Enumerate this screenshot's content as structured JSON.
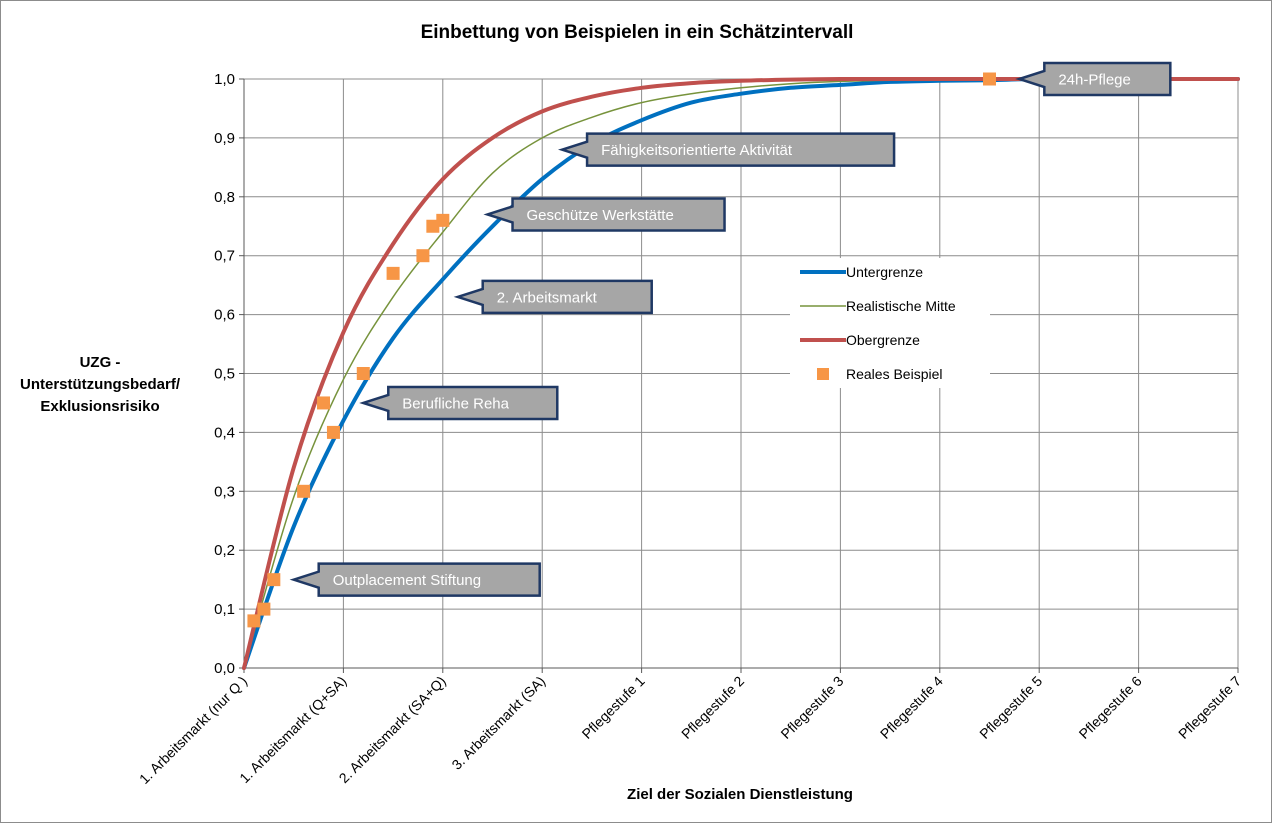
{
  "chart_data": {
    "type": "line",
    "title": "Einbettung  von Beispielen in ein Schätzintervall",
    "xlabel": "Ziel der Sozialen Dienstleistung",
    "ylabel": [
      "UZG -",
      "Unterstützungsbedarf/",
      "Exklusionsrisiko"
    ],
    "categories": [
      "1. Arbeitsmarkt (nur Q )",
      "1. Arbeitsmarkt (Q+SA)",
      "2. Arbeitsmarkt (SA+Q)",
      "3. Arbeitsmarkt (SA)",
      "Pflegestufe 1",
      "Pflegestufe 2",
      "Pflegestufe 3",
      "Pflegestufe 4",
      "Pflegestufe 5",
      "Pflegestufe 6",
      "Pflegestufe 7"
    ],
    "xlim": [
      0,
      10
    ],
    "ylim": [
      0,
      1
    ],
    "yticks": [
      "0,0",
      "0,1",
      "0,2",
      "0,3",
      "0,4",
      "0,5",
      "0,6",
      "0,7",
      "0,8",
      "0,9",
      "1,0"
    ],
    "grid": true,
    "series": [
      {
        "name": "Untergrenze",
        "color": "#0070c0",
        "x": [
          0,
          0.5,
          1,
          1.5,
          2,
          2.5,
          3,
          3.5,
          4,
          4.5,
          5,
          5.5,
          6,
          6.5,
          7,
          7.5,
          8,
          9,
          10
        ],
        "y": [
          0,
          0.24,
          0.42,
          0.56,
          0.66,
          0.75,
          0.83,
          0.89,
          0.93,
          0.96,
          0.975,
          0.985,
          0.99,
          0.995,
          0.997,
          0.998,
          1.0,
          1.0,
          1.0
        ]
      },
      {
        "name": "Realistische Mitte",
        "color": "#77933c",
        "x": [
          0,
          0.5,
          1,
          1.5,
          2,
          2.5,
          3,
          3.5,
          4,
          4.5,
          5,
          5.5,
          6,
          6.5,
          7,
          7.5,
          8,
          9,
          10
        ],
        "y": [
          0,
          0.29,
          0.49,
          0.63,
          0.74,
          0.84,
          0.9,
          0.935,
          0.96,
          0.975,
          0.985,
          0.992,
          0.996,
          0.998,
          0.999,
          1.0,
          1.0,
          1.0,
          1.0
        ]
      },
      {
        "name": "Obergrenze",
        "color": "#c0504d",
        "x": [
          0,
          0.5,
          1,
          1.5,
          2,
          2.5,
          3,
          3.5,
          4,
          4.5,
          5,
          5.5,
          6,
          6.5,
          7,
          7.5,
          8,
          9,
          10
        ],
        "y": [
          0,
          0.34,
          0.57,
          0.72,
          0.83,
          0.9,
          0.945,
          0.97,
          0.985,
          0.993,
          0.997,
          0.999,
          1.0,
          1.0,
          1.0,
          1.0,
          1.0,
          1.0,
          1.0
        ]
      }
    ],
    "points": {
      "name": "Reales Beispiel",
      "color": "#f79646",
      "x": [
        0.1,
        0.2,
        0.3,
        0.6,
        0.8,
        0.9,
        1.2,
        1.5,
        1.8,
        1.9,
        2.0,
        7.5
      ],
      "y": [
        0.08,
        0.1,
        0.15,
        0.3,
        0.45,
        0.4,
        0.5,
        0.67,
        0.7,
        0.75,
        0.76,
        1.0
      ]
    },
    "annotations": [
      {
        "text": "24h-Pflege",
        "x": 7.8,
        "y": 1.0
      },
      {
        "text": "Fähigkeitsorientierte Aktivität",
        "x": 3.2,
        "y": 0.88
      },
      {
        "text": "Geschütze Werkstätte",
        "x": 2.45,
        "y": 0.77
      },
      {
        "text": "2. Arbeitsmarkt",
        "x": 2.15,
        "y": 0.63
      },
      {
        "text": "Berufliche Reha",
        "x": 1.2,
        "y": 0.45
      },
      {
        "text": "Outplacement Stiftung",
        "x": 0.5,
        "y": 0.15
      }
    ],
    "legend": {
      "position": "right"
    }
  }
}
